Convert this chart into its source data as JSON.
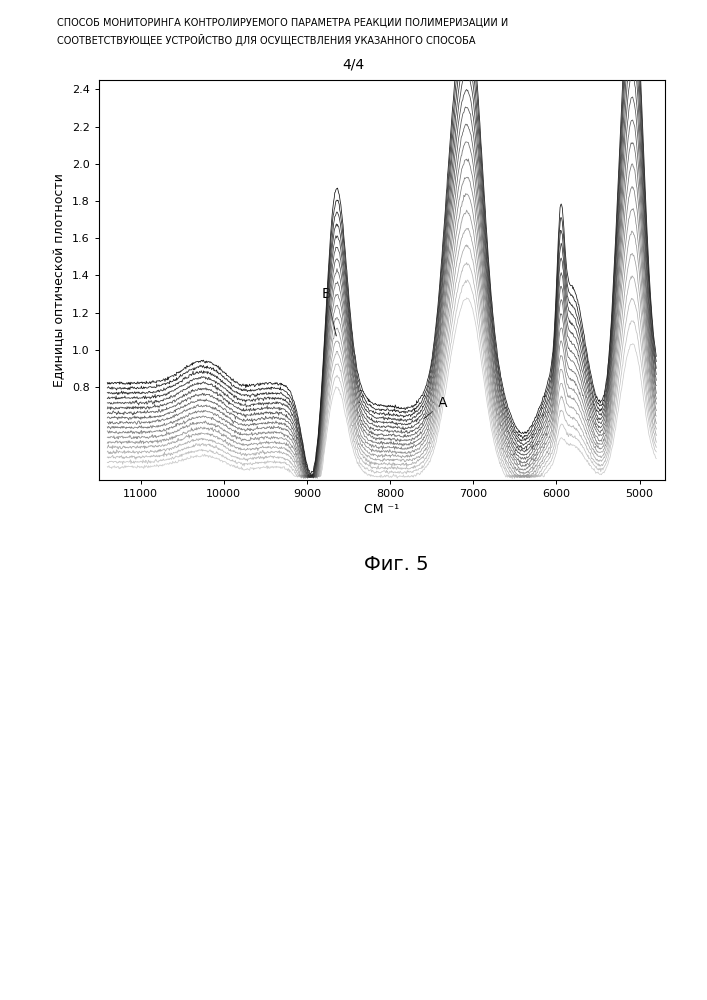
{
  "title_line1": "СПОСОБ МОНИТОРИНГА КОНТРОЛИРУЕМОГО ПАРАМЕТРА РЕАКЦИИ ПОЛИМЕРИЗАЦИИ И",
  "title_line2": "СООТВЕТСТВУЮЩЕЕ УСТРОЙСТВО ДЛЯ ОСУЩЕСТВЛЕНИЯ УКАЗАННОГО СПОСОБА",
  "page_label": "4/4",
  "fig_label": "Фиг. 5",
  "xlabel": "СМ ⁻¹",
  "ylabel": "Единицы оптической плотности",
  "xmin": 4700,
  "xmax": 11500,
  "ymin": 0.3,
  "ymax": 2.45,
  "yticks": [
    0.8,
    1.0,
    1.2,
    1.4,
    1.6,
    1.8,
    2.0,
    2.2,
    2.4
  ],
  "xticks": [
    11000,
    10000,
    9000,
    8000,
    7000,
    6000,
    5000
  ],
  "n_curves": 18,
  "background_color": "#ffffff"
}
